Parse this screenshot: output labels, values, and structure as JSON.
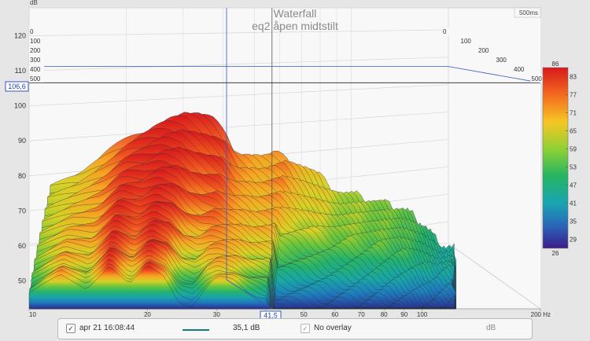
{
  "chart_data": {
    "type": "area",
    "subtype": "3d-waterfall",
    "title": "Waterfall",
    "subtitle": "eq2 åpen midtstilt",
    "time_window_label": "500ms",
    "y_unit": "dB",
    "x_unit": "Hz",
    "x_scale": "log",
    "xlim": [
      10,
      200
    ],
    "ylim": [
      42,
      128
    ],
    "x_ticks": [
      10,
      20,
      30,
      40,
      50,
      60,
      70,
      80,
      90,
      100,
      200
    ],
    "x_tick_labels": [
      "10",
      "20",
      "30",
      "",
      "50",
      "60",
      "70",
      "80",
      "90",
      "100",
      "200 Hz"
    ],
    "y_ticks": [
      50,
      60,
      70,
      80,
      90,
      100,
      110,
      120
    ],
    "z_ticks_left": [
      "0",
      "100",
      "200",
      "300",
      "400",
      "500"
    ],
    "z_ticks_right": [
      "0",
      "100",
      "200",
      "300",
      "400",
      "500"
    ],
    "cursor_x_label": "41,5",
    "cursor_x_value": 41.5,
    "cursor_y_label": "106,6",
    "cursor_y_value": 106.6,
    "colorbar": {
      "min_label": "26",
      "max_label": "86",
      "range": [
        26,
        86
      ],
      "ticks": [
        "83",
        "77",
        "71",
        "65",
        "59",
        "53",
        "47",
        "41",
        "35",
        "29"
      ]
    },
    "front_slice": {
      "x": [
        10,
        12,
        14,
        16,
        18,
        20,
        22,
        24,
        26,
        28,
        30,
        33,
        36,
        40
      ],
      "y": [
        46,
        52,
        48,
        55,
        49,
        54,
        51,
        44,
        43,
        48,
        51,
        50,
        47,
        45
      ]
    },
    "peak_ridge": {
      "x": [
        10,
        12,
        14,
        16,
        18,
        20,
        22,
        24,
        26,
        28,
        30,
        35,
        40,
        45,
        50,
        55,
        60,
        70,
        80,
        90,
        100
      ],
      "y": [
        75,
        78,
        84,
        89,
        93,
        95,
        96,
        95,
        93,
        90,
        85,
        83,
        84,
        80,
        76,
        73,
        72,
        70,
        68,
        63,
        57
      ]
    }
  },
  "legend": {
    "entry_checked": "✓",
    "entry_label": "apr 21 16:08:44",
    "entry_color": "#167a7a",
    "entry_value": "35,1 dB",
    "overlay_checked": "✓",
    "overlay_label": "No overlay",
    "overlay_unit": "dB"
  },
  "colors": {
    "background": "#e6e6e6",
    "plot_background": "#f7f7f7",
    "cursor": "#3355cc",
    "colormap": [
      "#3b1c8c",
      "#2c4ea8",
      "#1f8ab8",
      "#18b3a0",
      "#37c25a",
      "#a5d12a",
      "#f4c81d",
      "#f08a22",
      "#e0321b"
    ]
  }
}
